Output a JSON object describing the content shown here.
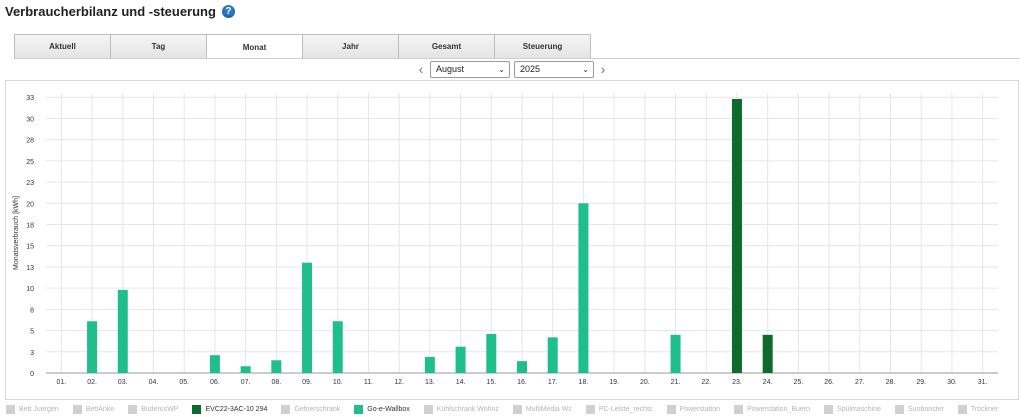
{
  "header": {
    "title": "Verbraucherbilanz und -steuerung",
    "help_icon": "?"
  },
  "tabs": [
    {
      "label": "Aktuell",
      "active": false
    },
    {
      "label": "Tag",
      "active": false
    },
    {
      "label": "Monat",
      "active": true
    },
    {
      "label": "Jahr",
      "active": false
    },
    {
      "label": "Gesamt",
      "active": false
    },
    {
      "label": "Steuerung",
      "active": false
    }
  ],
  "period": {
    "prev": "‹",
    "next": "›",
    "month": "August",
    "year": "2025",
    "caret": "⌄"
  },
  "colors": {
    "evc": "#0d6b2e",
    "wallbox": "#1fbf8c",
    "grid": "#e6e6e6",
    "inactive": "#d0d0d0"
  },
  "chart_data": {
    "type": "bar",
    "ylabel": "Monatsverbrauch [kWh]",
    "ylim": [
      0,
      33
    ],
    "yticks": [
      "0",
      "3",
      "5",
      "8",
      "10",
      "13",
      "15",
      "18",
      "20",
      "23",
      "25",
      "28",
      "30",
      "33"
    ],
    "ytick_values": [
      0,
      2.5,
      5,
      7.5,
      10,
      12.5,
      15,
      17.5,
      20,
      22.5,
      25,
      27.5,
      30,
      32.5
    ],
    "categories": [
      "01.",
      "02.",
      "03.",
      "04.",
      "05.",
      "06.",
      "07.",
      "08.",
      "09.",
      "10.",
      "11.",
      "12.",
      "13.",
      "14.",
      "15.",
      "16.",
      "17.",
      "18.",
      "19.",
      "20.",
      "21.",
      "22.",
      "23.",
      "24.",
      "25.",
      "26.",
      "27.",
      "28.",
      "29.",
      "30.",
      "31."
    ],
    "grid": true,
    "legend_position": "bottom",
    "series": [
      {
        "name": "EVC22-3AC-10 294",
        "values": [
          0,
          0,
          0,
          0,
          0,
          0,
          0,
          0,
          0,
          0,
          0,
          0,
          0,
          0,
          0,
          0,
          0,
          0,
          0,
          0,
          0,
          0,
          32.3,
          4.5,
          0,
          0,
          0,
          0,
          0,
          0,
          0
        ]
      },
      {
        "name": "Go-e-Wallbox",
        "values": [
          0,
          6.1,
          9.8,
          0,
          0,
          2.1,
          0.8,
          1.5,
          13.0,
          6.1,
          0,
          0,
          1.9,
          3.1,
          4.6,
          1.4,
          4.2,
          20.0,
          0,
          0,
          4.5,
          0,
          0,
          0,
          0,
          0,
          0,
          0,
          0,
          0,
          0
        ]
      }
    ]
  },
  "legend": [
    {
      "label": "Bett Juergen",
      "active": false,
      "color": ""
    },
    {
      "label": "BettAnke",
      "active": false,
      "color": ""
    },
    {
      "label": "BuderusWP",
      "active": false,
      "color": ""
    },
    {
      "label": "EVC22-3AC-10 294",
      "active": true,
      "color": "#0d6b2e"
    },
    {
      "label": "Gefrierschrank",
      "active": false,
      "color": ""
    },
    {
      "label": "Go-e-Wallbox",
      "active": true,
      "color": "#1fbf8c"
    },
    {
      "label": "Kühlschrank Wohnz",
      "active": false,
      "color": ""
    },
    {
      "label": "MultiMedia Wz",
      "active": false,
      "color": ""
    },
    {
      "label": "PC-Leiste_rechts",
      "active": false,
      "color": ""
    },
    {
      "label": "Powerstation",
      "active": false,
      "color": ""
    },
    {
      "label": "Powerstation_Buero",
      "active": false,
      "color": ""
    },
    {
      "label": "Spülmaschine",
      "active": false,
      "color": ""
    },
    {
      "label": "Sunbooster",
      "active": false,
      "color": ""
    },
    {
      "label": "Trockner",
      "active": false,
      "color": ""
    }
  ]
}
